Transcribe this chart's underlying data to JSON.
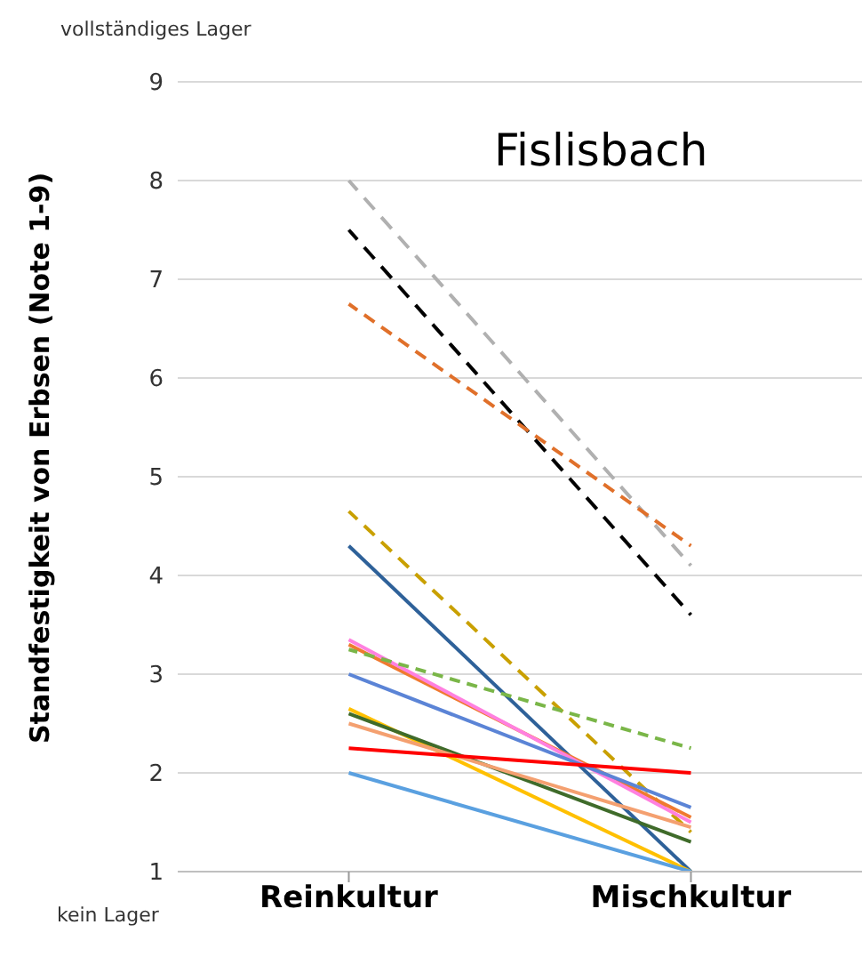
{
  "chart_data": {
    "type": "line",
    "title": "Fislisbach",
    "ylabel": "Standfestigkeit von Erbsen (Note 1-9)",
    "categories": [
      "Reinkultur",
      "Mischkultur"
    ],
    "ylim": [
      1,
      9
    ],
    "yticks": [
      1,
      2,
      3,
      4,
      5,
      6,
      7,
      8,
      9
    ],
    "grid": "y",
    "marker": "none",
    "annotations": [
      "vollständiges Lager",
      "kein Lager"
    ],
    "series": [
      {
        "color": "#b0b0b0",
        "line_style": "dashed",
        "values": [
          8,
          4.1
        ]
      },
      {
        "color": "#000000",
        "line_style": "dashed",
        "values": [
          7.5,
          3.6
        ]
      },
      {
        "color": "#e0702a",
        "line_style": "dashed",
        "values": [
          6.75,
          4.3
        ]
      },
      {
        "color": "#c9a000",
        "line_style": "dashed",
        "values": [
          4.65,
          1.4
        ]
      },
      {
        "color": "#2e6199",
        "line_style": "solid",
        "values": [
          4.3,
          1
        ]
      },
      {
        "color": "#f07a30",
        "line_style": "solid",
        "values": [
          3.3,
          1.55
        ]
      },
      {
        "color": "#ff80e0",
        "line_style": "solid",
        "values": [
          3.35,
          1.5
        ]
      },
      {
        "color": "#7ab648",
        "line_style": "dashed",
        "values": [
          3.25,
          2.25
        ]
      },
      {
        "color": "#5b84d6",
        "line_style": "solid",
        "values": [
          3,
          1.65
        ]
      },
      {
        "color": "#ffc000",
        "line_style": "solid",
        "values": [
          2.65,
          1
        ]
      },
      {
        "color": "#3f6b2a",
        "line_style": "solid",
        "values": [
          2.6,
          1.3
        ]
      },
      {
        "color": "#f4a070",
        "line_style": "solid",
        "values": [
          2.5,
          1.45
        ]
      },
      {
        "color": "#ff0000",
        "line_style": "solid",
        "values": [
          2.25,
          2
        ]
      },
      {
        "color": "#5aa0e0",
        "line_style": "solid",
        "values": [
          2,
          1
        ]
      }
    ]
  }
}
